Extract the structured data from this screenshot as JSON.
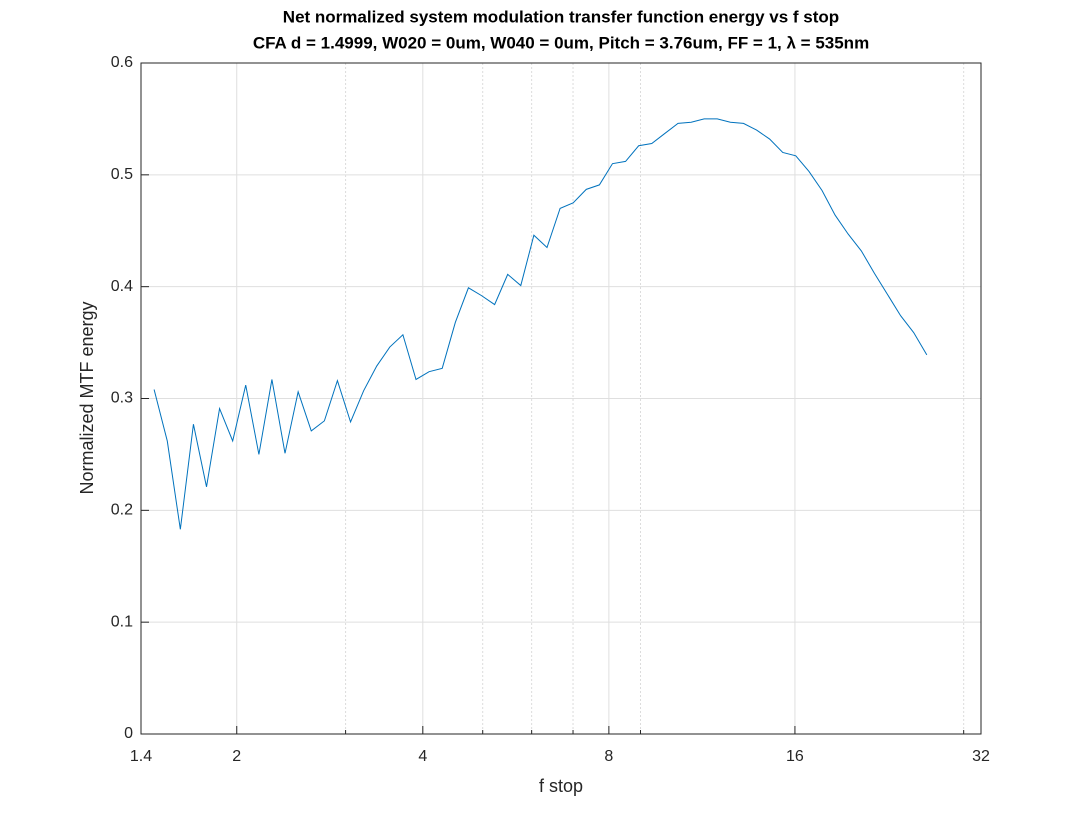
{
  "chart_data": {
    "type": "line",
    "title": "Net normalized system modulation transfer function energy vs f stop",
    "subtitle": "CFA d = 1.4999, W020 = 0um, W040 = 0um, Pitch = 3.76um, FF = 1, λ = 535nm",
    "xlabel": "f stop",
    "ylabel": "Normalized MTF energy",
    "xscale": "log",
    "grid": true,
    "xlim": [
      1.4,
      32
    ],
    "xticks": [
      1.4,
      2,
      4,
      8,
      16,
      32
    ],
    "xminorticks": [
      3,
      5,
      6,
      7,
      9,
      30
    ],
    "ylim": [
      0,
      0.6
    ],
    "yticks": [
      0,
      0.1,
      0.2,
      0.3,
      0.4,
      0.5,
      0.6
    ],
    "series": [
      {
        "color": "#0072bd",
        "x": [
          1.47,
          1.544,
          1.621,
          1.702,
          1.787,
          1.876,
          1.97,
          2.068,
          2.172,
          2.28,
          2.394,
          2.514,
          2.64,
          2.772,
          2.91,
          3.056,
          3.209,
          3.369,
          3.537,
          3.714,
          3.9,
          4.095,
          4.3,
          4.515,
          4.741,
          4.978,
          5.227,
          5.488,
          5.762,
          6.05,
          6.353,
          6.671,
          7.004,
          7.354,
          7.722,
          8.108,
          8.513,
          8.939,
          9.386,
          9.855,
          10.35,
          10.87,
          11.41,
          11.98,
          12.58,
          13.21,
          13.87,
          14.56,
          15.29,
          16.05,
          16.86,
          17.7,
          18.58,
          19.51,
          20.49,
          21.51,
          22.59,
          23.72,
          24.9,
          26.15
        ],
        "values": [
          0.308,
          0.262,
          0.183,
          0.277,
          0.221,
          0.291,
          0.262,
          0.312,
          0.25,
          0.317,
          0.251,
          0.306,
          0.271,
          0.28,
          0.316,
          0.279,
          0.307,
          0.329,
          0.346,
          0.357,
          0.317,
          0.324,
          0.327,
          0.368,
          0.399,
          0.392,
          0.384,
          0.411,
          0.401,
          0.446,
          0.435,
          0.47,
          0.475,
          0.487,
          0.491,
          0.51,
          0.512,
          0.526,
          0.528,
          0.537,
          0.546,
          0.547,
          0.55,
          0.55,
          0.547,
          0.546,
          0.54,
          0.532,
          0.52,
          0.517,
          0.503,
          0.486,
          0.464,
          0.447,
          0.432,
          0.412,
          0.393,
          0.374,
          0.359,
          0.339
        ]
      }
    ]
  }
}
